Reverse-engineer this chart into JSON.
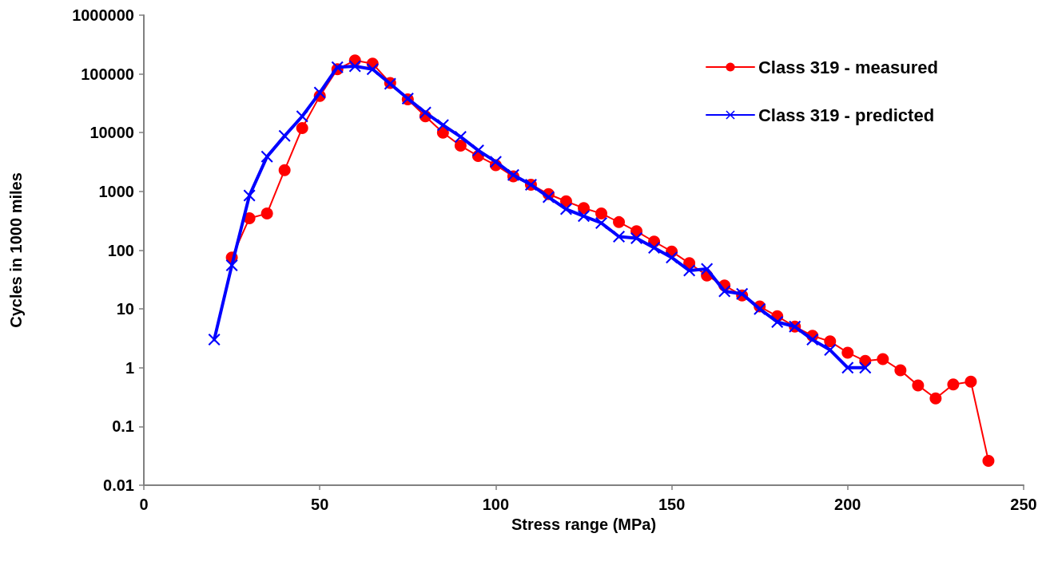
{
  "chart_data": {
    "type": "line",
    "xlabel": "Stress range (MPa)",
    "ylabel": "Cycles in 1000 miles",
    "log": "y",
    "grid": false,
    "legend": "top right",
    "xlim": [
      0,
      250
    ],
    "xticks": [
      0,
      50,
      100,
      150,
      200,
      250
    ],
    "ylim": [
      0.01,
      1000000
    ],
    "yticks": [
      0.01,
      0.1,
      1,
      10,
      100,
      1000,
      10000,
      100000,
      1000000
    ],
    "series": [
      {
        "name": "Class 319 - measured",
        "color": "#ff0000",
        "marker": "circle",
        "x": [
          25,
          30,
          35,
          40,
          45,
          50,
          55,
          60,
          65,
          70,
          75,
          80,
          85,
          90,
          95,
          100,
          105,
          110,
          115,
          120,
          125,
          130,
          135,
          140,
          145,
          150,
          155,
          160,
          165,
          170,
          175,
          180,
          185,
          190,
          195,
          200,
          205,
          210,
          215,
          220,
          225,
          230,
          235,
          240
        ],
        "values": [
          75,
          350,
          420,
          2300,
          12000,
          42000,
          120000,
          170000,
          150000,
          70000,
          37000,
          19000,
          10000,
          6000,
          4000,
          2800,
          1800,
          1300,
          900,
          680,
          520,
          420,
          300,
          210,
          140,
          95,
          60,
          37,
          25,
          17,
          11,
          7.5,
          5,
          3.5,
          2.8,
          1.8,
          1.3,
          1.4,
          0.9,
          0.5,
          0.3,
          0.52,
          0.58,
          0.026
        ]
      },
      {
        "name": "Class 319 - predicted",
        "color": "#0000ff",
        "marker": "cross",
        "x": [
          20,
          25,
          30,
          35,
          40,
          45,
          50,
          55,
          60,
          65,
          70,
          75,
          80,
          85,
          90,
          95,
          100,
          105,
          110,
          115,
          120,
          125,
          130,
          135,
          140,
          145,
          150,
          155,
          160,
          165,
          170,
          175,
          180,
          185,
          190,
          195,
          200,
          205
        ],
        "values": [
          3,
          55,
          850,
          3900,
          8800,
          19000,
          48000,
          130000,
          135000,
          120000,
          68000,
          38000,
          22000,
          13500,
          8500,
          5000,
          3200,
          1900,
          1300,
          800,
          500,
          380,
          290,
          170,
          160,
          110,
          75,
          45,
          48,
          20,
          18,
          10,
          6,
          5,
          3,
          2,
          1,
          1
        ]
      }
    ]
  }
}
